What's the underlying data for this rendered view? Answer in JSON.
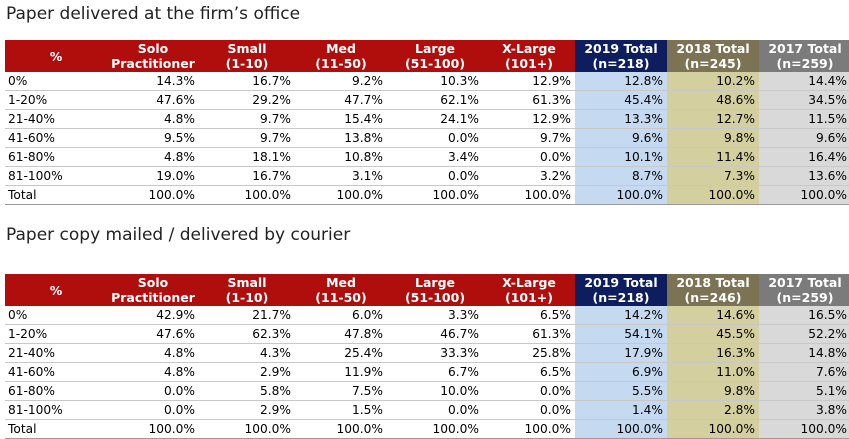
{
  "section1": {
    "title": "Paper delivered at the firm’s office",
    "headers": [
      {
        "line1": "%",
        "line2": ""
      },
      {
        "line1": "Solo",
        "line2": "Practitioner"
      },
      {
        "line1": "Small",
        "line2": "(1-10)"
      },
      {
        "line1": "Med",
        "line2": "(11-50)"
      },
      {
        "line1": "Large",
        "line2": "(51-100)"
      },
      {
        "line1": "X-Large",
        "line2": "(101+)"
      },
      {
        "line1": "2019 Total",
        "line2": "(n=218)"
      },
      {
        "line1": "2018 Total",
        "line2": "(n=245)"
      },
      {
        "line1": "2017 Total",
        "line2": "(n=259)"
      }
    ],
    "rows": [
      [
        "0%",
        "14.3%",
        "16.7%",
        "9.2%",
        "10.3%",
        "12.9%",
        "12.8%",
        "10.2%",
        "14.4%"
      ],
      [
        "1-20%",
        "47.6%",
        "29.2%",
        "47.7%",
        "62.1%",
        "61.3%",
        "45.4%",
        "48.6%",
        "34.5%"
      ],
      [
        "21-40%",
        "4.8%",
        "9.7%",
        "15.4%",
        "24.1%",
        "12.9%",
        "13.3%",
        "12.7%",
        "11.5%"
      ],
      [
        "41-60%",
        "9.5%",
        "9.7%",
        "13.8%",
        "0.0%",
        "9.7%",
        "9.6%",
        "9.8%",
        "9.6%"
      ],
      [
        "61-80%",
        "4.8%",
        "18.1%",
        "10.8%",
        "3.4%",
        "0.0%",
        "10.1%",
        "11.4%",
        "16.4%"
      ],
      [
        "81-100%",
        "19.0%",
        "16.7%",
        "3.1%",
        "0.0%",
        "3.2%",
        "8.7%",
        "7.3%",
        "13.6%"
      ],
      [
        "Total",
        "100.0%",
        "100.0%",
        "100.0%",
        "100.0%",
        "100.0%",
        "100.0%",
        "100.0%",
        "100.0%"
      ]
    ]
  },
  "section2": {
    "title": "Paper copy mailed / delivered by courier",
    "headers": [
      {
        "line1": "%",
        "line2": ""
      },
      {
        "line1": "Solo",
        "line2": "Practitioner"
      },
      {
        "line1": "Small",
        "line2": "(1-10)"
      },
      {
        "line1": "Med",
        "line2": "(11-50)"
      },
      {
        "line1": "Large",
        "line2": "(51-100)"
      },
      {
        "line1": "X-Large",
        "line2": "(101+)"
      },
      {
        "line1": "2019 Total",
        "line2": "(n=218)"
      },
      {
        "line1": "2018 Total",
        "line2": "(n=246)"
      },
      {
        "line1": "2017 Total",
        "line2": "(n=259)"
      }
    ],
    "rows": [
      [
        "0%",
        "42.9%",
        "21.7%",
        "6.0%",
        "3.3%",
        "6.5%",
        "14.2%",
        "14.6%",
        "16.5%"
      ],
      [
        "1-20%",
        "47.6%",
        "62.3%",
        "47.8%",
        "46.7%",
        "61.3%",
        "54.1%",
        "45.5%",
        "52.2%"
      ],
      [
        "21-40%",
        "4.8%",
        "4.3%",
        "25.4%",
        "33.3%",
        "25.8%",
        "17.9%",
        "16.3%",
        "14.8%"
      ],
      [
        "41-60%",
        "4.8%",
        "2.9%",
        "11.9%",
        "6.7%",
        "6.5%",
        "6.9%",
        "11.0%",
        "7.6%"
      ],
      [
        "61-80%",
        "0.0%",
        "5.8%",
        "7.5%",
        "10.0%",
        "0.0%",
        "5.5%",
        "9.8%",
        "5.1%"
      ],
      [
        "81-100%",
        "0.0%",
        "2.9%",
        "1.5%",
        "0.0%",
        "0.0%",
        "1.4%",
        "2.8%",
        "3.8%"
      ],
      [
        "Total",
        "100.0%",
        "100.0%",
        "100.0%",
        "100.0%",
        "100.0%",
        "100.0%",
        "100.0%",
        "100.0%"
      ]
    ]
  },
  "colors": {
    "header_red": "#b00d0d",
    "header_2019": "#0d1d5e",
    "header_2018": "#7c7355",
    "header_2017": "#7b7b7b",
    "fill_2019": "#c5d9f1",
    "fill_2018": "#d4cf9f",
    "fill_2017": "#d9d9d9"
  }
}
